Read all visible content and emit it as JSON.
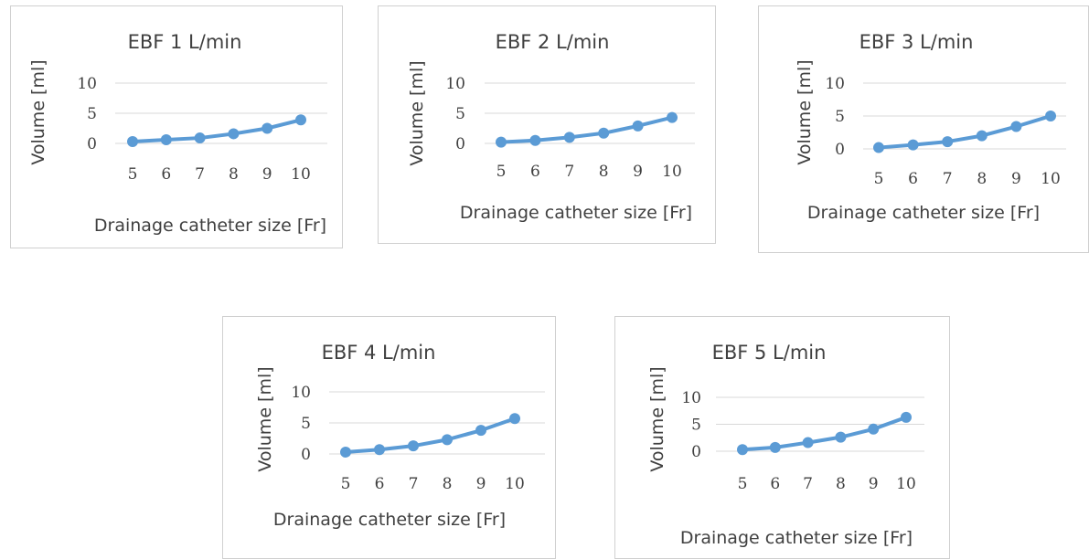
{
  "colors": {
    "series": "#5b9bd5"
  },
  "chart_data": [
    {
      "type": "line",
      "title": "EBF 1 L/min",
      "xlabel": "Drainage catheter size [Fr]",
      "ylabel": "Volume [ml]",
      "categories": [
        "5",
        "6",
        "7",
        "8",
        "9",
        "10"
      ],
      "yticks": [
        "0",
        "5",
        "10"
      ],
      "ylim": [
        0,
        10
      ],
      "grid": true,
      "values": [
        0.3,
        0.6,
        0.9,
        1.6,
        2.5,
        3.9
      ]
    },
    {
      "type": "line",
      "title": "EBF 2 L/min",
      "xlabel": "Drainage catheter size [Fr]",
      "ylabel": "Volume [ml]",
      "categories": [
        "5",
        "6",
        "7",
        "8",
        "9",
        "10"
      ],
      "yticks": [
        "0",
        "5",
        "10"
      ],
      "ylim": [
        0,
        10
      ],
      "grid": true,
      "values": [
        0.2,
        0.5,
        1.0,
        1.7,
        2.9,
        4.3
      ]
    },
    {
      "type": "line",
      "title": "EBF 3 L/min",
      "xlabel": "Drainage catheter size [Fr]",
      "ylabel": "Volume [ml]",
      "categories": [
        "5",
        "6",
        "7",
        "8",
        "9",
        "10"
      ],
      "yticks": [
        "0",
        "5",
        "10"
      ],
      "ylim": [
        0,
        10
      ],
      "grid": true,
      "values": [
        0.2,
        0.6,
        1.1,
        2.0,
        3.4,
        5.0
      ]
    },
    {
      "type": "line",
      "title": "EBF 4 L/min",
      "xlabel": "Drainage catheter size [Fr]",
      "ylabel": "Volume [ml]",
      "categories": [
        "5",
        "6",
        "7",
        "8",
        "9",
        "10"
      ],
      "yticks": [
        "0",
        "5",
        "10"
      ],
      "ylim": [
        0,
        10
      ],
      "grid": true,
      "values": [
        0.3,
        0.7,
        1.3,
        2.3,
        3.8,
        5.7
      ]
    },
    {
      "type": "line",
      "title": "EBF 5 L/min",
      "xlabel": "Drainage catheter size [Fr]",
      "ylabel": "Volume [ml]",
      "categories": [
        "5",
        "6",
        "7",
        "8",
        "9",
        "10"
      ],
      "yticks": [
        "0",
        "5",
        "10"
      ],
      "ylim": [
        0,
        10
      ],
      "grid": true,
      "values": [
        0.3,
        0.7,
        1.6,
        2.6,
        4.1,
        6.3
      ]
    }
  ]
}
